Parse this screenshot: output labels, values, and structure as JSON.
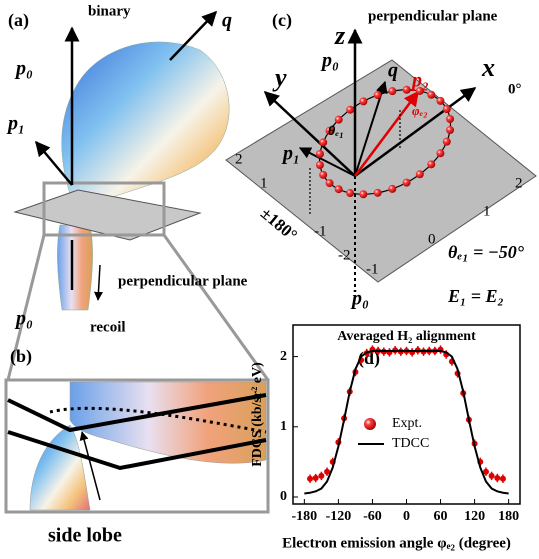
{
  "panel_a": {
    "label": "(a)",
    "binary": "binary",
    "q": "q",
    "p0_top": "p₀",
    "p1": "p₁",
    "plane": "perpendicular plane",
    "p0_bottom": "p₀",
    "recoil": "recoil"
  },
  "panel_b": {
    "label": "(b)",
    "side_lobe": "side lobe"
  },
  "panel_c": {
    "label": "(c)",
    "z": "z",
    "plane": "perpendicular plane",
    "p0_top": "p₀",
    "q": "q",
    "x": "x",
    "zero_deg": "0°",
    "p2": "p₂",
    "phi": "φₑ₂",
    "y": "y",
    "p1": "p₁",
    "theta": "θₑ₁",
    "pm180": "±180°",
    "left_ticks": [
      "2",
      "1",
      "-1",
      "-2"
    ],
    "right_ticks": [
      "-1",
      "0",
      "1",
      "2"
    ],
    "theta_value": "θₑ₁ = −50°",
    "energy": "E₁ = E₂",
    "p0_bottom": "p₀"
  },
  "chart_data": {
    "type": "line",
    "label": "(d)",
    "title": "Averaged H₂ alignment",
    "xlabel": "Electron emission angle φₑ₂ (degree)",
    "ylabel": "FDCS (kb/sr² eV)",
    "xlim": [
      -200,
      200
    ],
    "ylim": [
      -0.1,
      2.45
    ],
    "xticks": [
      -180,
      -120,
      -60,
      0,
      60,
      120,
      180
    ],
    "yticks": [
      0,
      1,
      2
    ],
    "series": [
      {
        "name": "Expt.",
        "type": "scatter",
        "color": "#e00000",
        "x": [
          -170,
          -160,
          -150,
          -140,
          -130,
          -120,
          -110,
          -100,
          -90,
          -80,
          -70,
          -60,
          -50,
          -40,
          -30,
          -20,
          -10,
          0,
          10,
          20,
          30,
          40,
          50,
          60,
          70,
          80,
          90,
          100,
          110,
          120,
          130,
          140,
          150,
          160,
          170
        ],
        "values": [
          0.26,
          0.27,
          0.3,
          0.36,
          0.5,
          0.78,
          1.12,
          1.5,
          1.78,
          1.95,
          2.05,
          2.1,
          2.08,
          2.07,
          2.06,
          2.09,
          2.07,
          2.08,
          2.06,
          2.09,
          2.07,
          2.08,
          2.08,
          2.1,
          2.03,
          1.93,
          1.76,
          1.48,
          1.1,
          0.76,
          0.5,
          0.36,
          0.3,
          0.27,
          0.26
        ],
        "errors": [
          0.06,
          0.06,
          0.06,
          0.06,
          0.06,
          0.06,
          0.06,
          0.06,
          0.06,
          0.06,
          0.06,
          0.06,
          0.06,
          0.06,
          0.06,
          0.06,
          0.06,
          0.06,
          0.06,
          0.06,
          0.06,
          0.06,
          0.06,
          0.06,
          0.06,
          0.06,
          0.06,
          0.06,
          0.06,
          0.06,
          0.06,
          0.06,
          0.06,
          0.06,
          0.06
        ]
      },
      {
        "name": "TDCC",
        "type": "line",
        "color": "#000000",
        "x": [
          -180,
          -170,
          -160,
          -150,
          -140,
          -130,
          -120,
          -110,
          -100,
          -90,
          -80,
          -70,
          -60,
          -50,
          -40,
          -30,
          -20,
          -10,
          0,
          10,
          20,
          30,
          40,
          50,
          60,
          70,
          80,
          90,
          100,
          110,
          120,
          130,
          140,
          150,
          160,
          170,
          180
        ],
        "values": [
          0.05,
          0.06,
          0.08,
          0.12,
          0.22,
          0.42,
          0.72,
          1.1,
          1.5,
          1.82,
          2.0,
          2.06,
          2.08,
          2.08,
          2.08,
          2.08,
          2.08,
          2.08,
          2.08,
          2.08,
          2.08,
          2.08,
          2.08,
          2.08,
          2.08,
          2.06,
          2.0,
          1.82,
          1.5,
          1.1,
          0.72,
          0.42,
          0.22,
          0.12,
          0.08,
          0.06,
          0.05
        ]
      }
    ]
  }
}
